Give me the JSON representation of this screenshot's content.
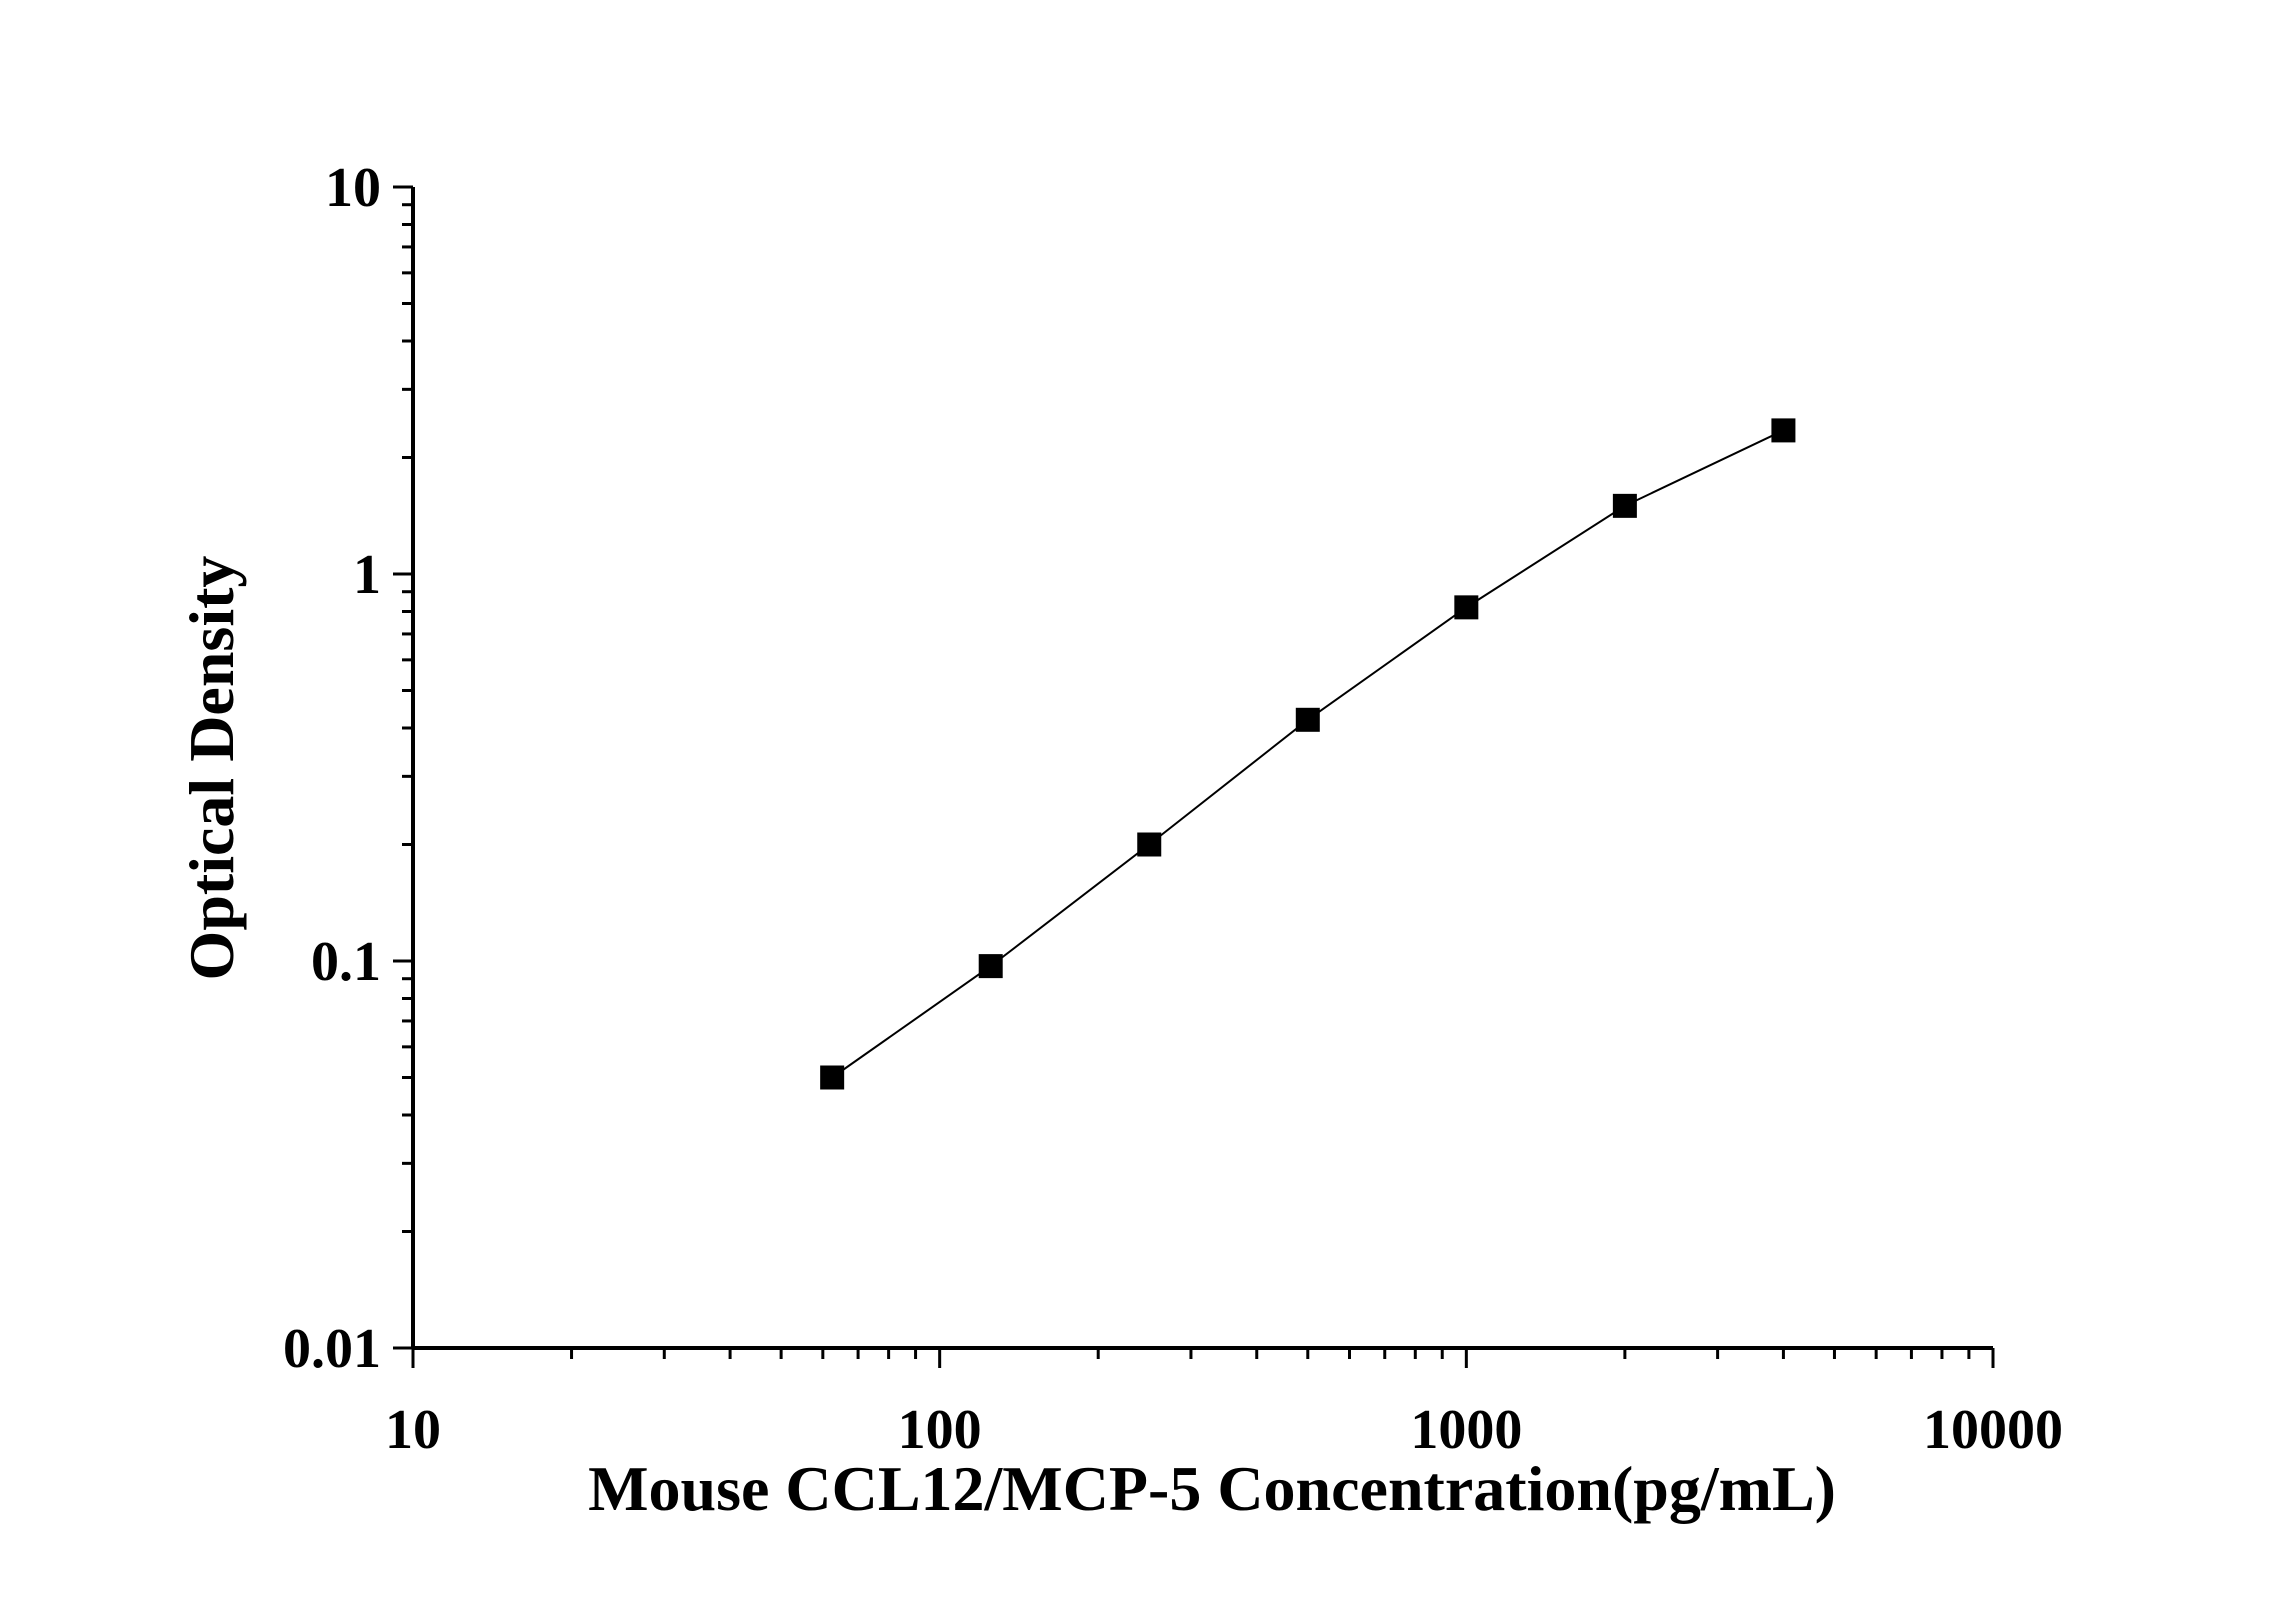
{
  "chart_data": {
    "type": "line",
    "title": "",
    "xlabel": "Mouse CCL12/MCP-5 Concentration(pg/mL)",
    "ylabel": "Optical Density",
    "x_scale": "log",
    "y_scale": "log",
    "xlim": [
      10,
      10000
    ],
    "ylim": [
      0.01,
      10
    ],
    "x_ticks": [
      "10",
      "100",
      "1000",
      "10000"
    ],
    "y_ticks": [
      "0.01",
      "0.1",
      "1",
      "10"
    ],
    "grid": false,
    "legend": "none",
    "marker": "square",
    "color": "#000000",
    "series": [
      {
        "x": [
          62.5,
          125,
          250,
          500,
          1000,
          2000,
          4000
        ],
        "y": [
          0.05,
          0.097,
          0.2,
          0.42,
          0.82,
          1.5,
          2.35
        ]
      }
    ]
  }
}
